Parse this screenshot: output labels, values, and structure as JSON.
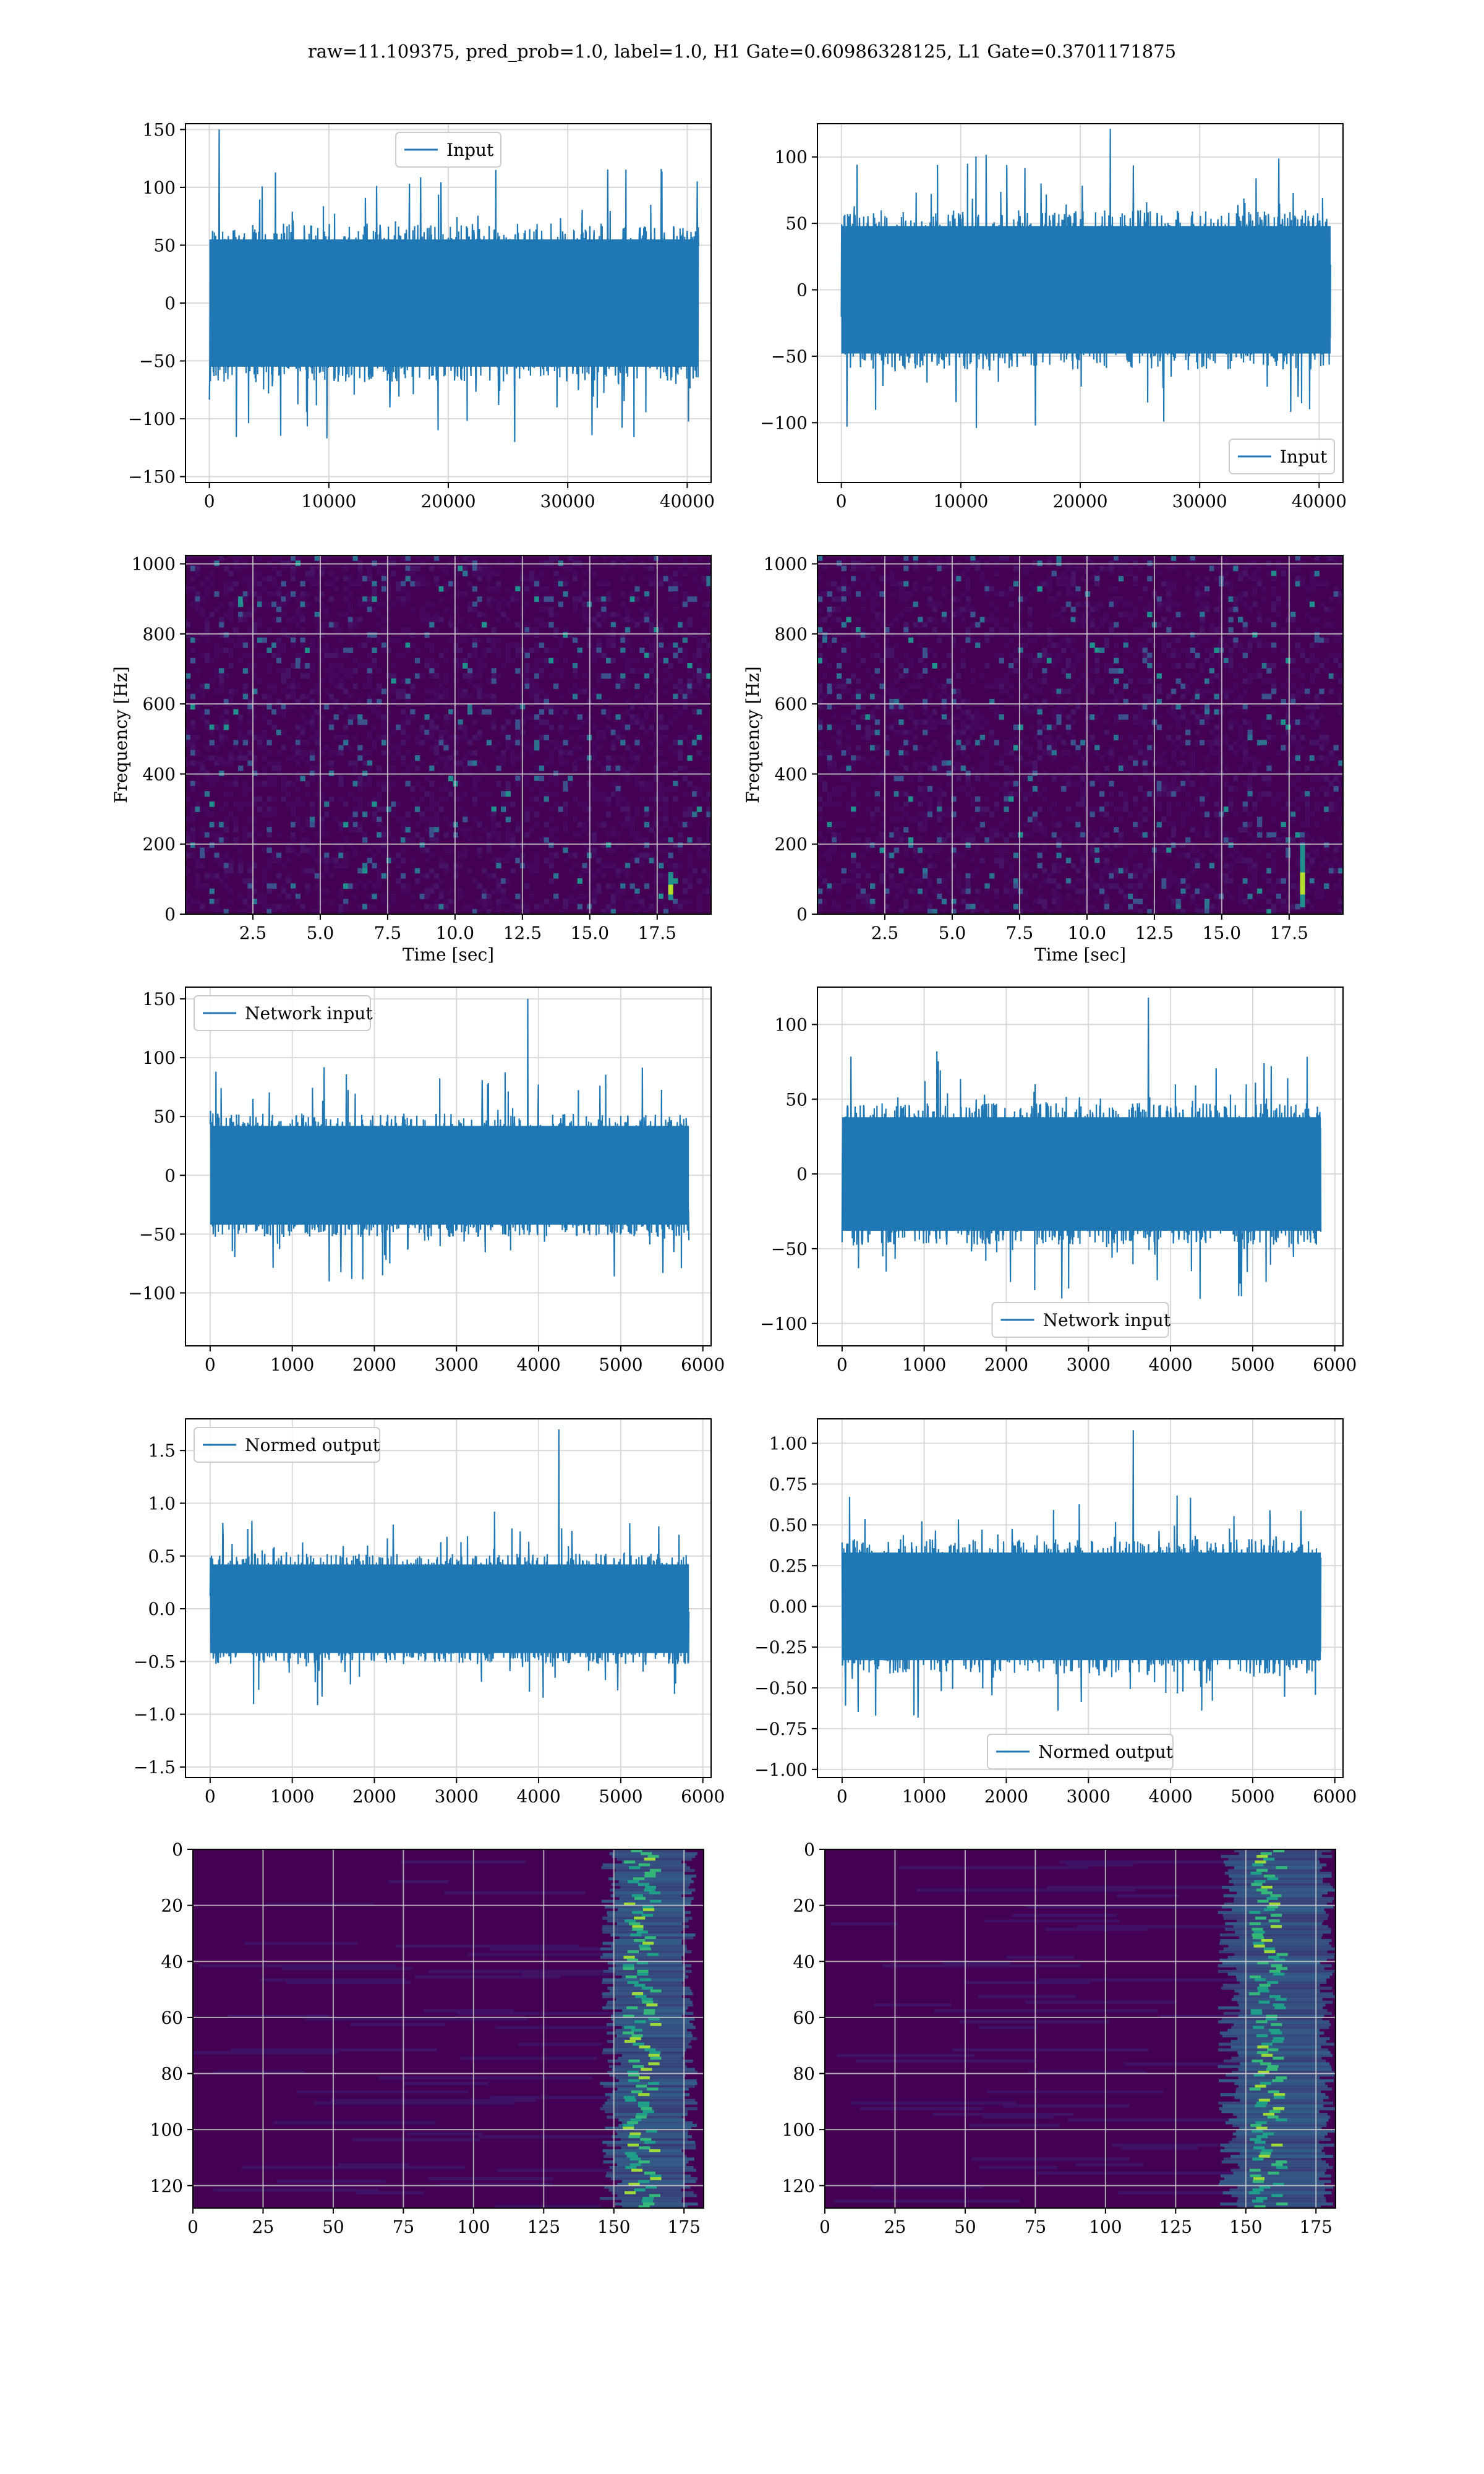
{
  "figure": {
    "suptitle": "raw=11.109375, pred_prob=1.0, label=1.0, H1 Gate=0.60986328125, L1 Gate=0.3701171875"
  },
  "colors": {
    "line": "#1f77b4",
    "grid": "#d9d9d9",
    "viridis_low": "#440154",
    "viridis_mid": "#21908d",
    "viridis_high": "#fde725"
  },
  "chart_data": [
    {
      "id": "input-h1",
      "type": "line",
      "xlim": [
        -2000,
        42000
      ],
      "ylim": [
        -155,
        155
      ],
      "xticks": [
        0,
        10000,
        20000,
        30000,
        40000
      ],
      "yticks": [
        -150,
        -100,
        -50,
        0,
        50,
        100,
        150
      ],
      "x_range": [
        0,
        40960
      ],
      "envelope": 55,
      "peak": 150,
      "series": [
        {
          "name": "Input"
        }
      ],
      "legend": "upper center",
      "grid": true,
      "xlabel": "",
      "ylabel": ""
    },
    {
      "id": "input-l1",
      "type": "line",
      "xlim": [
        -2000,
        42000
      ],
      "ylim": [
        -145,
        125
      ],
      "xticks": [
        0,
        10000,
        20000,
        30000,
        40000
      ],
      "yticks": [
        -100,
        -50,
        0,
        50,
        100
      ],
      "x_range": [
        0,
        40960
      ],
      "envelope": 48,
      "peak": 122,
      "series": [
        {
          "name": "Input"
        }
      ],
      "legend": "lower right",
      "grid": true,
      "xlabel": "",
      "ylabel": ""
    },
    {
      "id": "spectrogram-h1",
      "type": "heatmap",
      "xlim": [
        0,
        19.5
      ],
      "ylim": [
        0,
        1024
      ],
      "xticks": [
        2.5,
        5.0,
        7.5,
        10.0,
        12.5,
        15.0,
        17.5
      ],
      "yticks": [
        0,
        200,
        400,
        600,
        800,
        1000
      ],
      "xlabel": "Time [sec]",
      "ylabel": "Frequency [Hz]",
      "grid": true,
      "features": [
        {
          "t": 18.0,
          "f_low": 40,
          "f_high": 120
        }
      ]
    },
    {
      "id": "spectrogram-l1",
      "type": "heatmap",
      "xlim": [
        0,
        19.5
      ],
      "ylim": [
        0,
        1024
      ],
      "xticks": [
        2.5,
        5.0,
        7.5,
        10.0,
        12.5,
        15.0,
        17.5
      ],
      "yticks": [
        0,
        200,
        400,
        600,
        800,
        1000
      ],
      "xlabel": "Time [sec]",
      "ylabel": "Frequency [Hz]",
      "grid": true,
      "features": [
        {
          "t": 18.0,
          "f_low": 20,
          "f_high": 200
        }
      ]
    },
    {
      "id": "network-input-h1",
      "type": "line",
      "xlim": [
        -300,
        6100
      ],
      "ylim": [
        -145,
        160
      ],
      "xticks": [
        0,
        1000,
        2000,
        3000,
        4000,
        5000,
        6000
      ],
      "yticks": [
        -100,
        -50,
        0,
        50,
        100,
        150
      ],
      "x_range": [
        0,
        5830
      ],
      "envelope": 42,
      "peak": 150,
      "series": [
        {
          "name": "Network input"
        }
      ],
      "legend": "upper left",
      "grid": true,
      "xlabel": "",
      "ylabel": ""
    },
    {
      "id": "network-input-l1",
      "type": "line",
      "xlim": [
        -300,
        6100
      ],
      "ylim": [
        -115,
        125
      ],
      "xticks": [
        0,
        1000,
        2000,
        3000,
        4000,
        5000,
        6000
      ],
      "yticks": [
        -100,
        -50,
        0,
        50,
        100
      ],
      "x_range": [
        0,
        5830
      ],
      "envelope": 38,
      "peak": 118,
      "series": [
        {
          "name": "Network input"
        }
      ],
      "legend": "lower center",
      "grid": true,
      "xlabel": "",
      "ylabel": ""
    },
    {
      "id": "normed-output-h1",
      "type": "line",
      "xlim": [
        -300,
        6100
      ],
      "ylim": [
        -1.6,
        1.8
      ],
      "xticks": [
        0,
        1000,
        2000,
        3000,
        4000,
        5000,
        6000
      ],
      "yticks": [
        -1.5,
        -1.0,
        -0.5,
        0.0,
        0.5,
        1.0,
        1.5
      ],
      "ytick_labels": [
        "−1.5",
        "−1.0",
        "−0.5",
        "0.0",
        "0.5",
        "1.0",
        "1.5"
      ],
      "x_range": [
        0,
        5830
      ],
      "envelope": 0.42,
      "peak": 1.7,
      "series": [
        {
          "name": "Normed output"
        }
      ],
      "legend": "upper left",
      "grid": true,
      "xlabel": "",
      "ylabel": ""
    },
    {
      "id": "normed-output-l1",
      "type": "line",
      "xlim": [
        -300,
        6100
      ],
      "ylim": [
        -1.05,
        1.15
      ],
      "xticks": [
        0,
        1000,
        2000,
        3000,
        4000,
        5000,
        6000
      ],
      "yticks": [
        -1.0,
        -0.75,
        -0.5,
        -0.25,
        0.0,
        0.25,
        0.5,
        0.75,
        1.0
      ],
      "ytick_labels": [
        "−1.00",
        "−0.75",
        "−0.50",
        "−0.25",
        "0.00",
        "0.25",
        "0.50",
        "0.75",
        "1.00"
      ],
      "x_range": [
        0,
        5830
      ],
      "envelope": 0.33,
      "peak": 1.08,
      "series": [
        {
          "name": "Normed output"
        }
      ],
      "legend": "lower center",
      "grid": true,
      "xlabel": "",
      "ylabel": ""
    },
    {
      "id": "feature-map-h1",
      "type": "heatmap",
      "xlim": [
        0,
        182
      ],
      "ylim": [
        128,
        0
      ],
      "xticks": [
        0,
        25,
        50,
        75,
        100,
        125,
        150,
        175
      ],
      "yticks": [
        0,
        20,
        40,
        60,
        80,
        100,
        120
      ],
      "xlabel": "",
      "ylabel": "",
      "grid": true,
      "features": [
        {
          "x_low": 145,
          "x_high": 180,
          "center": 160
        }
      ]
    },
    {
      "id": "feature-map-l1",
      "type": "heatmap",
      "xlim": [
        0,
        182
      ],
      "ylim": [
        128,
        0
      ],
      "xticks": [
        0,
        25,
        50,
        75,
        100,
        125,
        150,
        175
      ],
      "yticks": [
        0,
        20,
        40,
        60,
        80,
        100,
        120
      ],
      "xlabel": "",
      "ylabel": "",
      "grid": true,
      "features": [
        {
          "x_low": 140,
          "x_high": 182,
          "center": 158
        }
      ]
    }
  ]
}
